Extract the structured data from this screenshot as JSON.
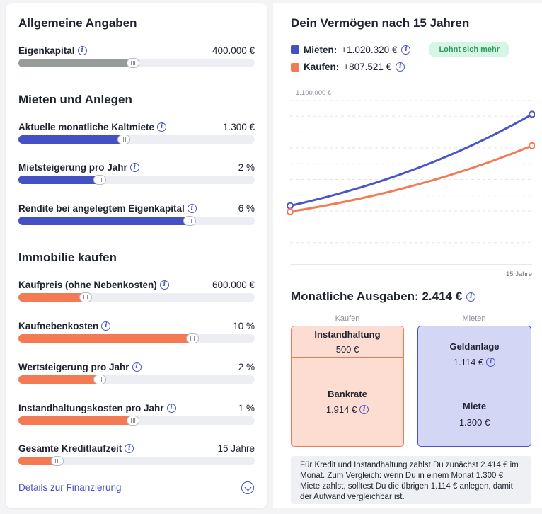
{
  "colors": {
    "accent_blue": "#4450c4",
    "orange": "#f47a53",
    "grey_fill": "#969c9a",
    "track": "#eceef3",
    "badge_bg": "#d6f5e4",
    "badge_text": "#2e9a62"
  },
  "general": {
    "title": "Allgemeine Angaben",
    "fields": [
      {
        "label": "Eigenkapital",
        "value": "400.000 €",
        "fraction": 0.5,
        "color": "grey"
      }
    ]
  },
  "rent": {
    "title": "Mieten und Anlegen",
    "fields": [
      {
        "label": "Aktuelle monatliche Kaltmiete",
        "value": "1.300 €",
        "fraction": 0.46,
        "color": "blue"
      },
      {
        "label": "Mietsteigerung pro Jahr",
        "value": "2 %",
        "fraction": 0.36,
        "color": "blue"
      },
      {
        "label": "Rendite bei angelegtem Eigenkapital",
        "value": "6 %",
        "fraction": 0.74,
        "color": "blue"
      }
    ]
  },
  "buy": {
    "title": "Immobilie kaufen",
    "fields": [
      {
        "label": "Kaufpreis (ohne Nebenkosten)",
        "value": "600.000 €",
        "fraction": 0.3,
        "color": "orange"
      },
      {
        "label": "Kaufnebenkosten",
        "value": "10 %",
        "fraction": 0.75,
        "color": "orange"
      },
      {
        "label": "Wertsteigerung pro Jahr",
        "value": "2 %",
        "fraction": 0.36,
        "color": "orange"
      },
      {
        "label": "Instandhaltungskosten pro Jahr",
        "value": "1 %",
        "fraction": 0.5,
        "color": "orange"
      },
      {
        "label": "Gesamte Kreditlaufzeit",
        "value": "15 Jahre",
        "fraction": 0.18,
        "color": "orange"
      }
    ]
  },
  "details_link": "Details zur Finanzierung",
  "icons": {
    "info": "info-icon",
    "chevron": "chevron-down-icon"
  },
  "wealth": {
    "title": "Dein Vermögen nach 15 Jahren",
    "legend": [
      {
        "name": "Mieten:",
        "value": "+1.020.320 €",
        "color": "#4450c4"
      },
      {
        "name": "Kaufen:",
        "value": "+807.521 €",
        "color": "#f47a53"
      }
    ],
    "badge": "Lohnt sich mehr"
  },
  "chart_data": {
    "type": "line",
    "y_tick_label": "1.100.000 €",
    "x_end_label": "15 Jahre",
    "x": [
      0,
      15
    ],
    "ylim": [
      0,
      1200000
    ],
    "grid": true,
    "series": [
      {
        "name": "Mieten:",
        "color": "#4a55c8",
        "start": 400000,
        "end": 1020320
      },
      {
        "name": "Kaufen:",
        "color": "#f47a53",
        "start": 360000,
        "end": 807521
      }
    ]
  },
  "expenses": {
    "title": "Monatliche Ausgaben: 2.414 €",
    "kaufen": {
      "header": "Kaufen",
      "instandhaltung_label": "Instandhaltung",
      "instandhaltung_value": "500 €",
      "bankrate_label": "Bankrate",
      "bankrate_value": "1.914 €"
    },
    "mieten": {
      "header": "Mieten",
      "geldanlage_label": "Geldanlage",
      "geldanlage_value": "1.114 €",
      "miete_label": "Miete",
      "miete_value": "1.300 €"
    },
    "note": "Für Kredit und Instandhaltung zahlst Du zunächst 2.414 € im Monat. Zum Vergleich: wenn Du in einem Monat 1.300 € Miete zahlst, solltest Du die übrigen 1.114 € anlegen, damit der Aufwand vergleichbar ist."
  }
}
